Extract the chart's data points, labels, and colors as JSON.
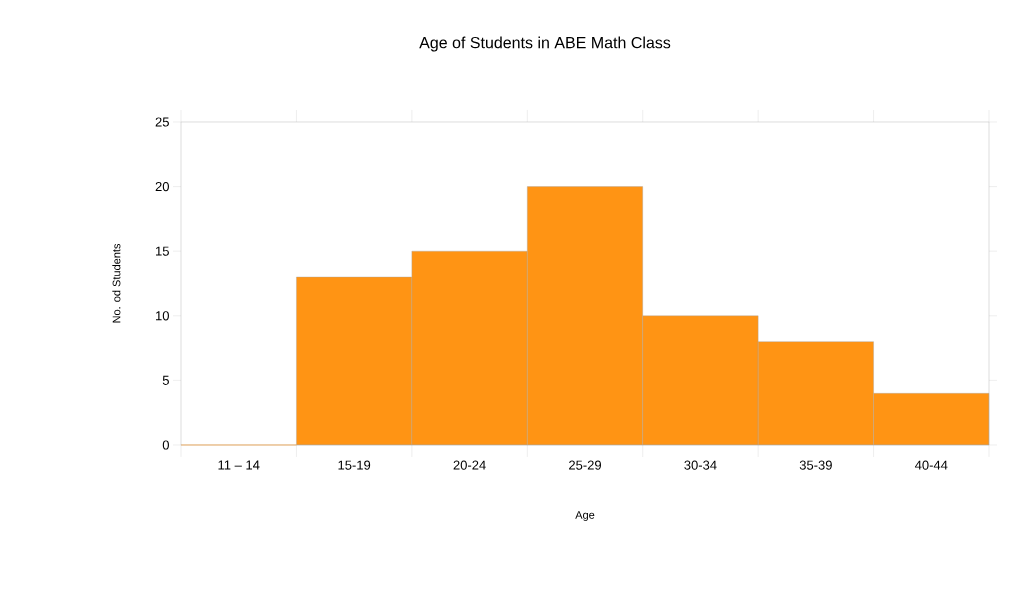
{
  "chart_data": {
    "type": "bar",
    "title": "Age of Students in ABE Math Class",
    "xlabel": "Age",
    "ylabel": "No. od Students",
    "categories": [
      "11 – 14",
      "15-19",
      "20-24",
      "25-29",
      "30-34",
      "35-39",
      "40-44"
    ],
    "values": [
      0,
      13,
      15,
      20,
      10,
      8,
      4
    ],
    "color": "#ff9414",
    "ylim": [
      0,
      25
    ],
    "yticks": [
      0,
      5,
      10,
      15,
      20,
      25
    ],
    "grid": false
  }
}
